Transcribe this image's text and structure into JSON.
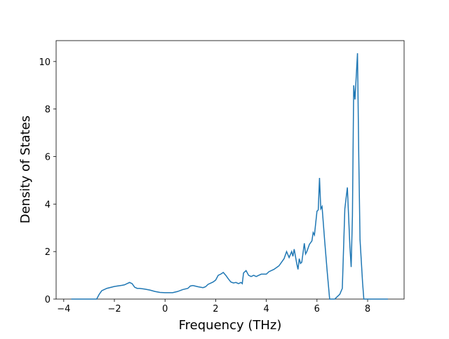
{
  "chart_data": {
    "type": "line",
    "xlabel": "Frequency (THz)",
    "ylabel": "Density of States",
    "xlim": [
      -4.3,
      9.44
    ],
    "ylim": [
      0,
      10.88
    ],
    "xticks": [
      {
        "value": -4,
        "label": "−4"
      },
      {
        "value": -2,
        "label": "−2"
      },
      0,
      2,
      4,
      6,
      8
    ],
    "yticks": [
      0,
      2,
      4,
      6,
      8,
      10
    ],
    "series": [
      {
        "color": "#1f77b4",
        "x": [
          -3.7,
          -2.7,
          -2.6,
          -2.5,
          -2.3,
          -2.0,
          -1.7,
          -1.6,
          -1.5,
          -1.4,
          -1.3,
          -1.2,
          -1.1,
          -1.0,
          -0.8,
          -0.6,
          -0.4,
          -0.2,
          0,
          0.3,
          0.5,
          0.7,
          0.9,
          1.0,
          1.1,
          1.3,
          1.5,
          1.6,
          1.7,
          1.9,
          2.0,
          2.1,
          2.2,
          2.3,
          2.4,
          2.5,
          2.6,
          2.7,
          2.8,
          2.9,
          3.0,
          3.05,
          3.1,
          3.2,
          3.3,
          3.4,
          3.5,
          3.6,
          3.7,
          3.8,
          3.9,
          4.0,
          4.1,
          4.3,
          4.5,
          4.6,
          4.7,
          4.8,
          4.9,
          5.0,
          5.05,
          5.1,
          5.2,
          5.25,
          5.3,
          5.35,
          5.4,
          5.5,
          5.55,
          5.6,
          5.7,
          5.8,
          5.85,
          5.9,
          6.0,
          6.05,
          6.1,
          6.15,
          6.2,
          6.3,
          6.4,
          6.5,
          6.7,
          6.8,
          6.9,
          7.0,
          7.1,
          7.2,
          7.3,
          7.35,
          7.4,
          7.45,
          7.5,
          7.6,
          7.65,
          7.7,
          7.8,
          7.85,
          8.8
        ],
        "values": [
          0,
          0,
          0.2,
          0.35,
          0.45,
          0.53,
          0.58,
          0.6,
          0.65,
          0.7,
          0.65,
          0.5,
          0.45,
          0.45,
          0.42,
          0.38,
          0.32,
          0.28,
          0.27,
          0.27,
          0.32,
          0.4,
          0.45,
          0.55,
          0.57,
          0.52,
          0.48,
          0.52,
          0.62,
          0.72,
          0.8,
          1.0,
          1.05,
          1.12,
          1.0,
          0.85,
          0.72,
          0.68,
          0.7,
          0.65,
          0.7,
          0.65,
          1.1,
          1.2,
          1.0,
          0.95,
          1.0,
          0.95,
          1.0,
          1.05,
          1.05,
          1.05,
          1.15,
          1.25,
          1.4,
          1.55,
          1.7,
          2.0,
          1.75,
          2.0,
          1.8,
          2.1,
          1.5,
          1.25,
          1.7,
          1.5,
          1.55,
          2.35,
          1.9,
          2.0,
          2.3,
          2.45,
          2.8,
          2.7,
          3.7,
          3.75,
          5.1,
          3.8,
          3.9,
          2.5,
          1.2,
          0,
          0,
          0.1,
          0.2,
          0.45,
          3.8,
          4.7,
          2.2,
          1.35,
          3.5,
          9.0,
          8.4,
          10.35,
          6,
          2.5,
          0.7,
          0,
          0
        ]
      }
    ]
  }
}
